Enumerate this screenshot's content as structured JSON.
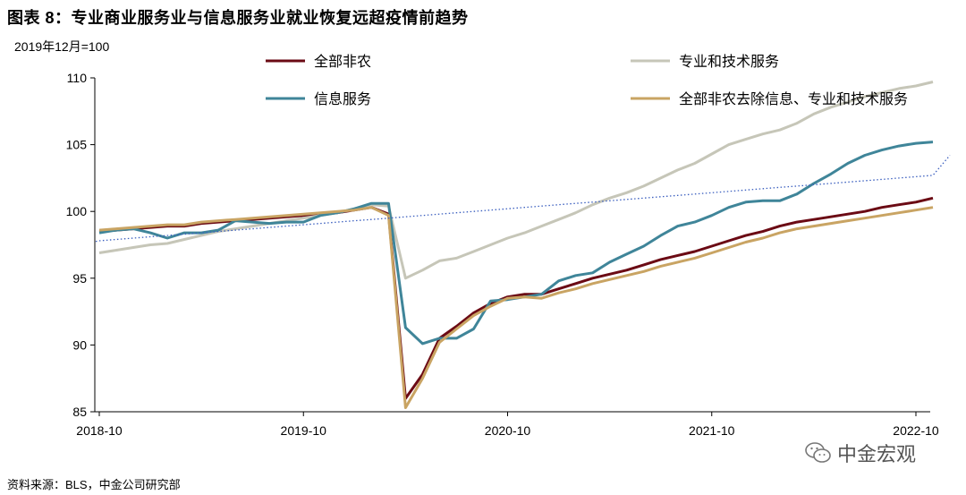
{
  "figure": {
    "title": "图表 8：专业商业服务业与信息服务业就业恢复远超疫情前趋势",
    "unit_label": "2019年12月=100",
    "source": "资料来源：BLS，中金公司研究部",
    "watermark": "中金宏观",
    "watermark_icon": "wechat-icon"
  },
  "chart_data": {
    "type": "line",
    "xlabel": "",
    "ylabel": "2019年12月=100",
    "x_ticks": [
      "2018-10",
      "2019-10",
      "2020-10",
      "2021-10",
      "2022-10"
    ],
    "y_ticks": [
      85,
      90,
      95,
      100,
      105,
      110
    ],
    "ylim": [
      85,
      110
    ],
    "x_range": [
      "2018-10",
      "2022-10"
    ],
    "grid": false,
    "legend_position": "top",
    "x": [
      "2018-10",
      "2018-11",
      "2018-12",
      "2019-01",
      "2019-02",
      "2019-03",
      "2019-04",
      "2019-05",
      "2019-06",
      "2019-07",
      "2019-08",
      "2019-09",
      "2019-10",
      "2019-11",
      "2019-12",
      "2020-01",
      "2020-02",
      "2020-03",
      "2020-04",
      "2020-05",
      "2020-06",
      "2020-07",
      "2020-08",
      "2020-09",
      "2020-10",
      "2020-11",
      "2020-12",
      "2021-01",
      "2021-02",
      "2021-03",
      "2021-04",
      "2021-05",
      "2021-06",
      "2021-07",
      "2021-08",
      "2021-09",
      "2021-10",
      "2021-11",
      "2021-12",
      "2022-01",
      "2022-02",
      "2022-03",
      "2022-04",
      "2022-05",
      "2022-06",
      "2022-07",
      "2022-08",
      "2022-09",
      "2022-10",
      "2022-11"
    ],
    "series": [
      {
        "name": "全部非农",
        "color": "#6b0a14",
        "style": "solid",
        "values": [
          98.5,
          98.6,
          98.7,
          98.8,
          98.9,
          98.9,
          99.1,
          99.2,
          99.3,
          99.4,
          99.5,
          99.6,
          99.7,
          99.8,
          99.9,
          100.1,
          100.3,
          99.8,
          86.0,
          87.8,
          90.5,
          91.4,
          92.4,
          93.1,
          93.6,
          93.8,
          93.8,
          94.2,
          94.6,
          95.0,
          95.3,
          95.6,
          96.0,
          96.4,
          96.7,
          97.0,
          97.4,
          97.8,
          98.2,
          98.5,
          98.9,
          99.2,
          99.4,
          99.6,
          99.8,
          100.0,
          100.3,
          100.5,
          100.7,
          101.0
        ]
      },
      {
        "name": "专业和技术服务",
        "color": "#c6c6b8",
        "style": "solid",
        "values": [
          96.9,
          97.1,
          97.3,
          97.5,
          97.6,
          97.9,
          98.2,
          98.5,
          98.7,
          98.9,
          99.1,
          99.3,
          99.5,
          99.7,
          99.9,
          100.2,
          100.5,
          100.4,
          95.0,
          95.6,
          96.3,
          96.5,
          97.0,
          97.5,
          98.0,
          98.4,
          98.9,
          99.4,
          99.9,
          100.5,
          101.0,
          101.4,
          101.9,
          102.5,
          103.1,
          103.6,
          104.3,
          105.0,
          105.4,
          105.8,
          106.1,
          106.6,
          107.3,
          107.8,
          108.2,
          108.6,
          108.9,
          109.2,
          109.4,
          109.7
        ]
      },
      {
        "name": "信息服务",
        "color": "#3f8599",
        "style": "solid",
        "values": [
          98.4,
          98.6,
          98.7,
          98.4,
          98.0,
          98.4,
          98.4,
          98.6,
          99.3,
          99.2,
          99.1,
          99.2,
          99.2,
          99.7,
          99.9,
          100.2,
          100.6,
          100.6,
          91.3,
          90.1,
          90.5,
          90.5,
          91.2,
          93.3,
          93.4,
          93.6,
          93.8,
          94.8,
          95.2,
          95.4,
          96.2,
          96.8,
          97.4,
          98.2,
          98.9,
          99.2,
          99.7,
          100.3,
          100.7,
          100.8,
          100.8,
          101.3,
          102.1,
          102.8,
          103.6,
          104.2,
          104.6,
          104.9,
          105.1,
          105.2
        ]
      },
      {
        "name": "全部非农去除信息、专业和技术服务",
        "color": "#c9a463",
        "style": "solid",
        "values": [
          98.6,
          98.7,
          98.8,
          98.9,
          99.0,
          99.0,
          99.2,
          99.3,
          99.4,
          99.5,
          99.6,
          99.7,
          99.8,
          99.9,
          100.0,
          100.1,
          100.3,
          99.7,
          85.3,
          87.5,
          90.2,
          91.2,
          92.2,
          92.9,
          93.5,
          93.6,
          93.5,
          93.9,
          94.2,
          94.6,
          94.9,
          95.2,
          95.5,
          95.9,
          96.2,
          96.5,
          96.9,
          97.3,
          97.7,
          98.0,
          98.4,
          98.7,
          98.9,
          99.1,
          99.3,
          99.5,
          99.7,
          99.9,
          100.1,
          100.3
        ]
      },
      {
        "name": "",
        "color": "#3b5fbf",
        "style": "dotted",
        "trend": true,
        "values": [
          97.8,
          97.9,
          98.0,
          98.1,
          98.2,
          98.3,
          98.4,
          98.5,
          98.6,
          98.7,
          98.8,
          98.9,
          99.0,
          99.1,
          99.2,
          99.3,
          99.4,
          99.5,
          99.6,
          99.7,
          99.8,
          99.9,
          100.0,
          100.1,
          100.2,
          100.3,
          100.4,
          100.5,
          100.6,
          100.7,
          100.8,
          100.9,
          101.0,
          101.1,
          101.2,
          101.3,
          101.4,
          101.5,
          101.6,
          101.7,
          101.8,
          101.9,
          102.0,
          102.1,
          102.2,
          102.3,
          102.4,
          102.5,
          102.6,
          102.7
        ]
      }
    ],
    "trend_extension": {
      "x": "2022-12",
      "value": 104.2
    }
  }
}
